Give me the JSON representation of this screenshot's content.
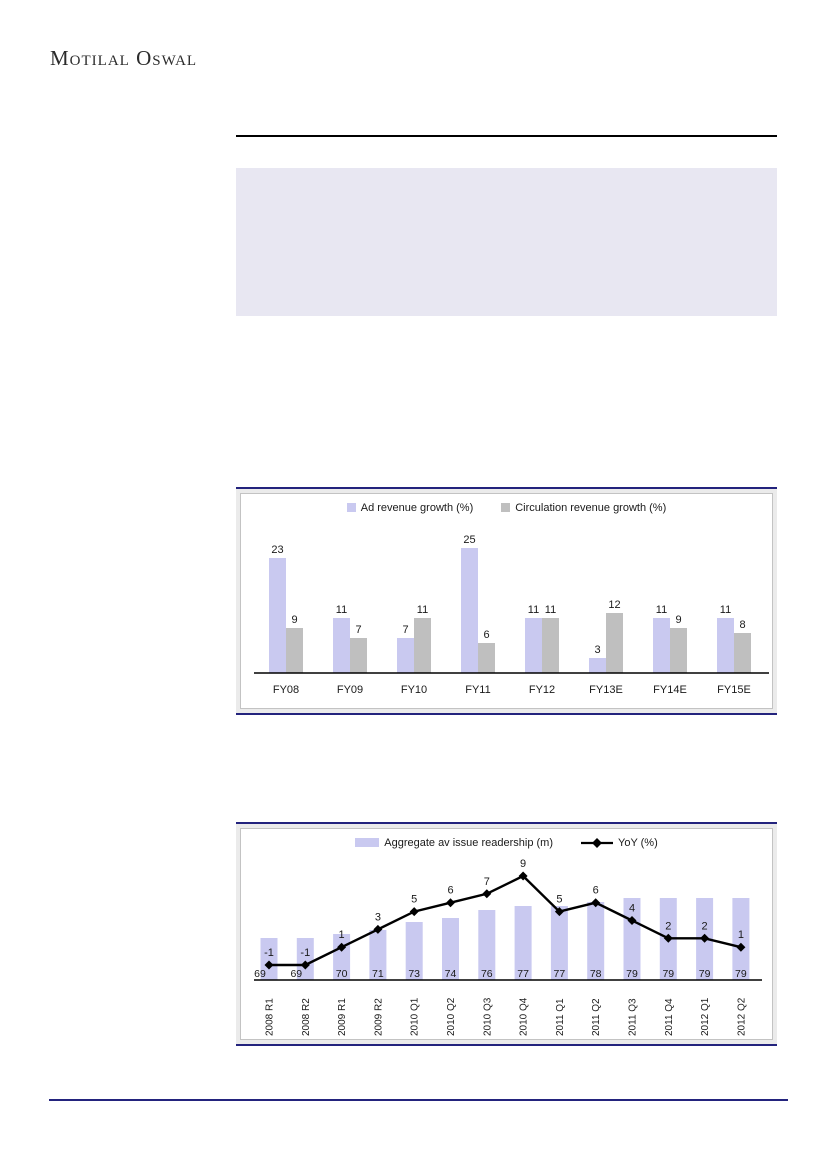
{
  "page": {
    "logo_text": "Motilal Oswal"
  },
  "colors": {
    "navy_rule": "#23237d",
    "black_rule": "#000000",
    "placeholder_bg": "#e8e7f2",
    "chart_frame_bg": "#ebebeb",
    "chart_inner_border": "#c3c3c3",
    "bar_lavender": "#c9c9f0",
    "bar_gray": "#bfbfbf",
    "line_black": "#000000"
  },
  "chart_data": [
    {
      "type": "bar",
      "categories": [
        "FY08",
        "FY09",
        "FY10",
        "FY11",
        "FY12",
        "FY13E",
        "FY14E",
        "FY15E"
      ],
      "series": [
        {
          "name": "Ad revenue growth (%)",
          "color": "#c9c9f0",
          "values": [
            23,
            11,
            7,
            25,
            11,
            3,
            11,
            11
          ]
        },
        {
          "name": "Circulation revenue growth (%)",
          "color": "#bfbfbf",
          "values": [
            9,
            7,
            11,
            6,
            11,
            12,
            9,
            8
          ]
        }
      ],
      "title": "",
      "xlabel": "",
      "ylabel": "",
      "ylim": [
        0,
        27
      ],
      "grid": false,
      "legend_position": "top-center",
      "data_labels": true
    },
    {
      "type": "bar+line",
      "categories": [
        "2008 R1",
        "2008 R2",
        "2009 R1",
        "2009 R2",
        "2010 Q1",
        "2010 Q2",
        "2010 Q3",
        "2010 Q4",
        "2011 Q1",
        "2011 Q2",
        "2011 Q3",
        "2011 Q4",
        "2012 Q1",
        "2012 Q2"
      ],
      "series": [
        {
          "name": "Aggregate av issue readership (m)",
          "type": "bar",
          "color": "#c9c9f0",
          "values": [
            69,
            69,
            70,
            71,
            73,
            74,
            76,
            77,
            77,
            78,
            79,
            79,
            79,
            79
          ],
          "ylim": [
            58.5,
            85
          ]
        },
        {
          "name": "YoY (%)",
          "type": "line",
          "color": "#000000",
          "marker": "diamond",
          "values": [
            -1,
            -1,
            1,
            3,
            5,
            6,
            7,
            9,
            5,
            6,
            4,
            2,
            2,
            1
          ],
          "ylim": [
            -3,
            12
          ]
        }
      ],
      "title": "",
      "xlabel": "",
      "ylabel": "",
      "grid": false,
      "legend_position": "top-center",
      "data_labels": true,
      "x_tick_rotation": 90
    }
  ]
}
